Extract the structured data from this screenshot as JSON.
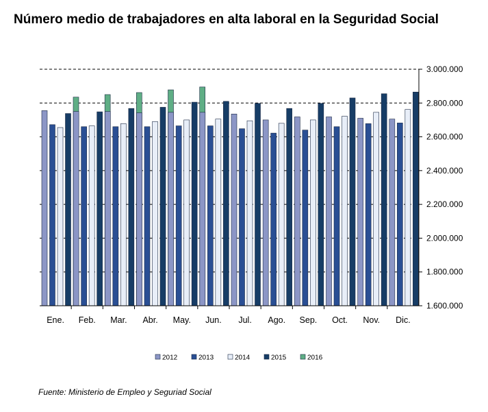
{
  "chart_data": {
    "type": "bar",
    "title": "Número medio de trabajadores en alta laboral en la Seguridad Social",
    "source": "Fuente: Ministerio de Empleo y Seguriad Social",
    "categories": [
      "Ene.",
      "Feb.",
      "Mar.",
      "Abr.",
      "May.",
      "Jun.",
      "Jul.",
      "Ago.",
      "Sep.",
      "Oct.",
      "Nov.",
      "Dic."
    ],
    "ylim": [
      1600000,
      3000000
    ],
    "y_ticks": [
      1600000,
      1800000,
      2000000,
      2200000,
      2400000,
      2600000,
      2800000,
      3000000
    ],
    "y_tick_labels": [
      "1.600.000",
      "1.800.000",
      "2.000.000",
      "2.200.000",
      "2.400.000",
      "2.600.000",
      "2.800.000",
      "3.000.000"
    ],
    "gridlines": "dashed",
    "legend_position": "bottom",
    "series": [
      {
        "name": "2012",
        "color": "#8c96c6",
        "values": [
          2755000,
          2750000,
          2750000,
          2742000,
          2745000,
          2745000,
          2735000,
          2700000,
          2718000,
          2718000,
          2710000,
          2705000
        ]
      },
      {
        "name": "2013",
        "color": "#2a4f94",
        "values": [
          2672000,
          2660000,
          2660000,
          2660000,
          2665000,
          2665000,
          2648000,
          2622000,
          2640000,
          2660000,
          2678000,
          2682000
        ]
      },
      {
        "name": "2014",
        "color": "#e8eef8",
        "values": [
          2655000,
          2665000,
          2678000,
          2690000,
          2700000,
          2705000,
          2695000,
          2680000,
          2700000,
          2722000,
          2745000,
          2762000
        ]
      },
      {
        "name": "2015",
        "color": "#173d66",
        "values": [
          2738000,
          2748000,
          2768000,
          2775000,
          2805000,
          2810000,
          2798000,
          2768000,
          2798000,
          2830000,
          2855000,
          2865000
        ]
      },
      {
        "name": "2016",
        "color": "#5fae85",
        "values": [
          2835000,
          2850000,
          2862000,
          2878000,
          2895000,
          null,
          null,
          null,
          null,
          null,
          null,
          null
        ]
      }
    ]
  }
}
